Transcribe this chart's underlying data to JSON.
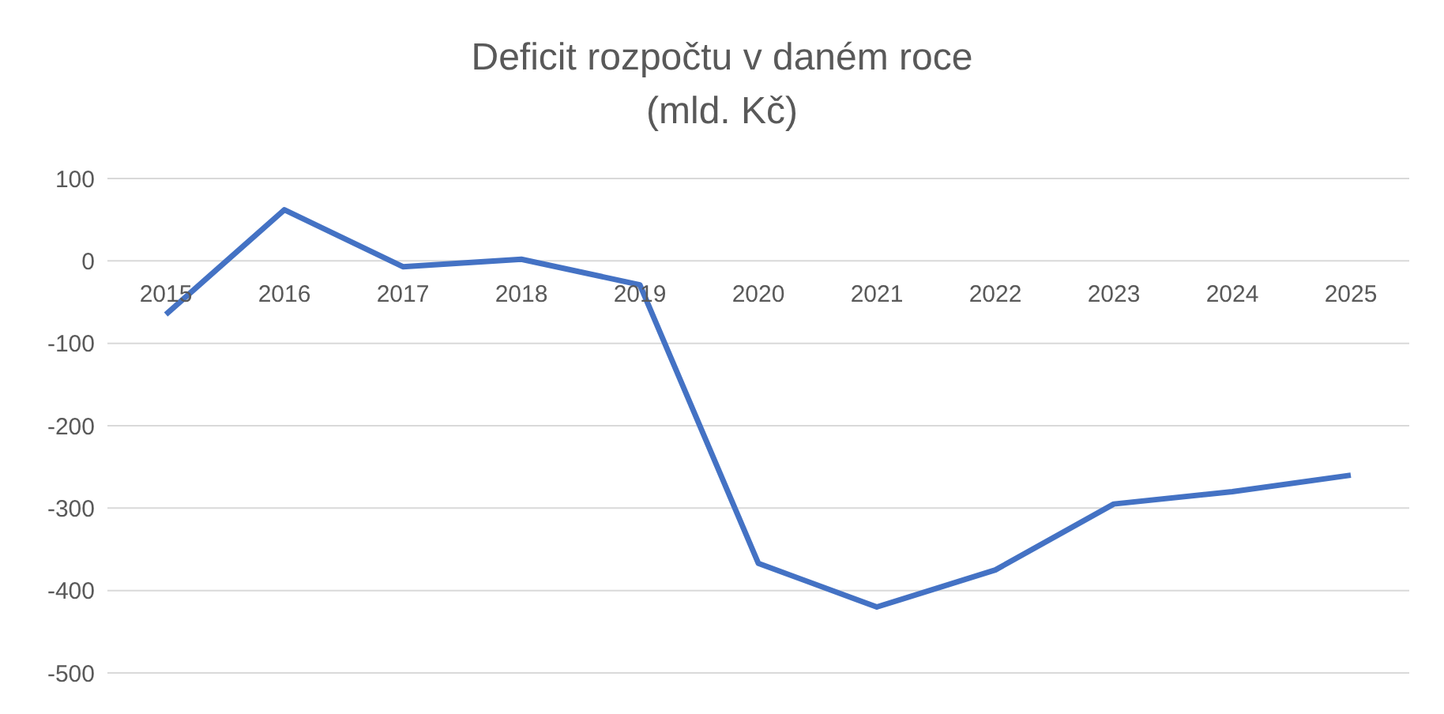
{
  "chart_data": {
    "type": "line",
    "title": "Deficit rozpočtu v daném roce",
    "subtitle": "(mld. Kč)",
    "categories": [
      "2015",
      "2016",
      "2017",
      "2018",
      "2019",
      "2020",
      "2021",
      "2022",
      "2023",
      "2024",
      "2025"
    ],
    "series": [
      {
        "color": "#4472c4",
        "values": [
          -65,
          62,
          -7,
          2,
          -29,
          -367,
          -420,
          -375,
          -295,
          -280,
          -260
        ]
      }
    ],
    "ylim": [
      -500,
      100
    ],
    "yticks": [
      -500,
      -400,
      -300,
      -200,
      -100,
      0,
      100
    ],
    "grid": "y",
    "legend": false,
    "marker": "none",
    "line_style": "solid"
  }
}
